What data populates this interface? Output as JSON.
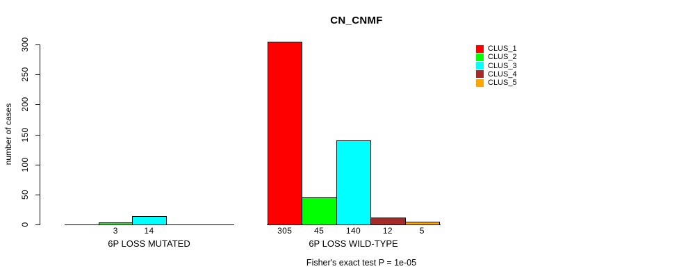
{
  "chart_data": {
    "type": "bar",
    "title": "CN_CNMF",
    "ylabel": "number of cases",
    "ylim": [
      0,
      300
    ],
    "yticks": [
      0,
      50,
      100,
      150,
      200,
      250,
      300
    ],
    "grid": false,
    "legend_position": "right",
    "categories": [
      "6P LOSS MUTATED",
      "6P LOSS WILD-TYPE"
    ],
    "series": [
      {
        "name": "CLUS_1",
        "color": "#FF0000",
        "values": [
          0,
          305
        ]
      },
      {
        "name": "CLUS_2",
        "color": "#00FF00",
        "values": [
          3,
          45
        ]
      },
      {
        "name": "CLUS_3",
        "color": "#00FFFF",
        "values": [
          14,
          140
        ]
      },
      {
        "name": "CLUS_4",
        "color": "#A52A2A",
        "values": [
          0,
          12
        ]
      },
      {
        "name": "CLUS_5",
        "color": "#FFA500",
        "values": [
          0,
          5
        ]
      }
    ],
    "groups": [
      {
        "label": "6P LOSS MUTATED",
        "values": [
          0,
          3,
          14,
          0,
          0
        ],
        "bar_labels": [
          "",
          "3",
          "14",
          "",
          ""
        ]
      },
      {
        "label": "6P LOSS WILD-TYPE",
        "values": [
          305,
          45,
          140,
          12,
          5
        ],
        "bar_labels": [
          "305",
          "45",
          "140",
          "12",
          "5"
        ]
      }
    ],
    "annotation": "Fisher's exact test P = 1e-05"
  }
}
